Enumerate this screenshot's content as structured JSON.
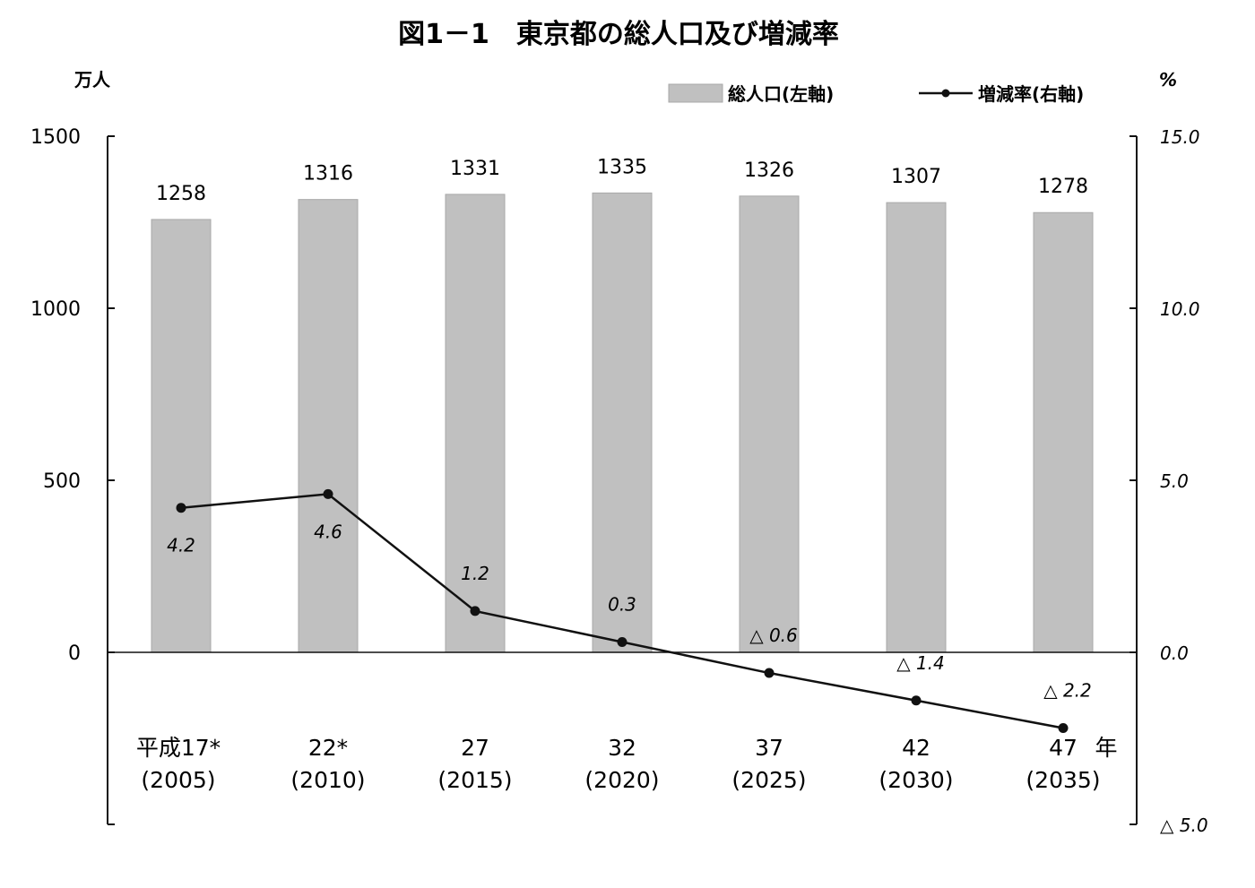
{
  "chart_data": {
    "type": "bar",
    "title": "図1－1　東京都の総人口及び増減率",
    "categories": [
      {
        "era": "平成17*",
        "year": "(2005)"
      },
      {
        "era": "22*",
        "year": "(2010)"
      },
      {
        "era": "27",
        "year": "(2015)"
      },
      {
        "era": "32",
        "year": "(2020)"
      },
      {
        "era": "37",
        "year": "(2025)"
      },
      {
        "era": "42",
        "year": "(2030)"
      },
      {
        "era": "47",
        "year": "(2035)"
      }
    ],
    "x_unit": "年",
    "series": [
      {
        "name": "総人口(左軸)",
        "type": "bar",
        "axis": "left",
        "color": "#c0c0c0",
        "values": [
          1258,
          1316,
          1331,
          1335,
          1326,
          1307,
          1278
        ],
        "labels": [
          "1258",
          "1316",
          "1331",
          "1335",
          "1326",
          "1307",
          "1278"
        ]
      },
      {
        "name": "増減率(右軸)",
        "type": "line",
        "axis": "right",
        "color": "#111111",
        "values": [
          4.2,
          4.6,
          1.2,
          0.3,
          -0.6,
          -1.4,
          -2.2
        ],
        "labels": [
          "4.2",
          "4.6",
          "1.2",
          "0.3",
          "△ 0.6",
          "△ 1.4",
          "△ 2.2"
        ]
      }
    ],
    "left_axis": {
      "unit": "万人",
      "ylim": [
        -500,
        1500
      ],
      "ticks": [
        0,
        500,
        1000,
        1500
      ],
      "tick_labels": [
        "0",
        "500",
        "1000",
        "1500"
      ]
    },
    "right_axis": {
      "unit": "%",
      "ylim": [
        -5.0,
        15.0
      ],
      "ticks": [
        -5.0,
        0.0,
        5.0,
        10.0,
        15.0
      ],
      "tick_labels": [
        "△ 5.0",
        "0.0",
        "5.0",
        "10.0",
        "15.0"
      ]
    },
    "grid": false,
    "legend_position": "top-right"
  }
}
